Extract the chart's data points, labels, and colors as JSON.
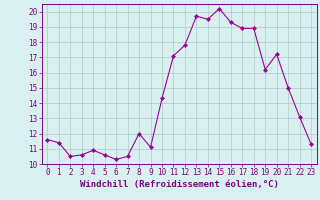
{
  "x": [
    0,
    1,
    2,
    3,
    4,
    5,
    6,
    7,
    8,
    9,
    10,
    11,
    12,
    13,
    14,
    15,
    16,
    17,
    18,
    19,
    20,
    21,
    22,
    23
  ],
  "y": [
    11.6,
    11.4,
    10.5,
    10.6,
    10.9,
    10.6,
    10.3,
    10.5,
    12.0,
    11.1,
    14.3,
    17.1,
    17.8,
    19.7,
    19.5,
    20.2,
    19.3,
    18.9,
    18.9,
    16.2,
    17.2,
    15.0,
    13.1,
    11.3
  ],
  "line_color": "#990099",
  "marker": "D",
  "marker_size": 2.0,
  "bg_color": "#d8f0f0",
  "grid_color": "#b0c8c8",
  "xlabel": "Windchill (Refroidissement éolien,°C)",
  "xlim": [
    -0.5,
    23.5
  ],
  "ylim": [
    10,
    20.5
  ],
  "yticks": [
    10,
    11,
    12,
    13,
    14,
    15,
    16,
    17,
    18,
    19,
    20
  ],
  "xticks": [
    0,
    1,
    2,
    3,
    4,
    5,
    6,
    7,
    8,
    9,
    10,
    11,
    12,
    13,
    14,
    15,
    16,
    17,
    18,
    19,
    20,
    21,
    22,
    23
  ],
  "tick_color": "#800080",
  "spine_color": "#800080",
  "label_fontsize": 6.5,
  "tick_fontsize": 5.5
}
